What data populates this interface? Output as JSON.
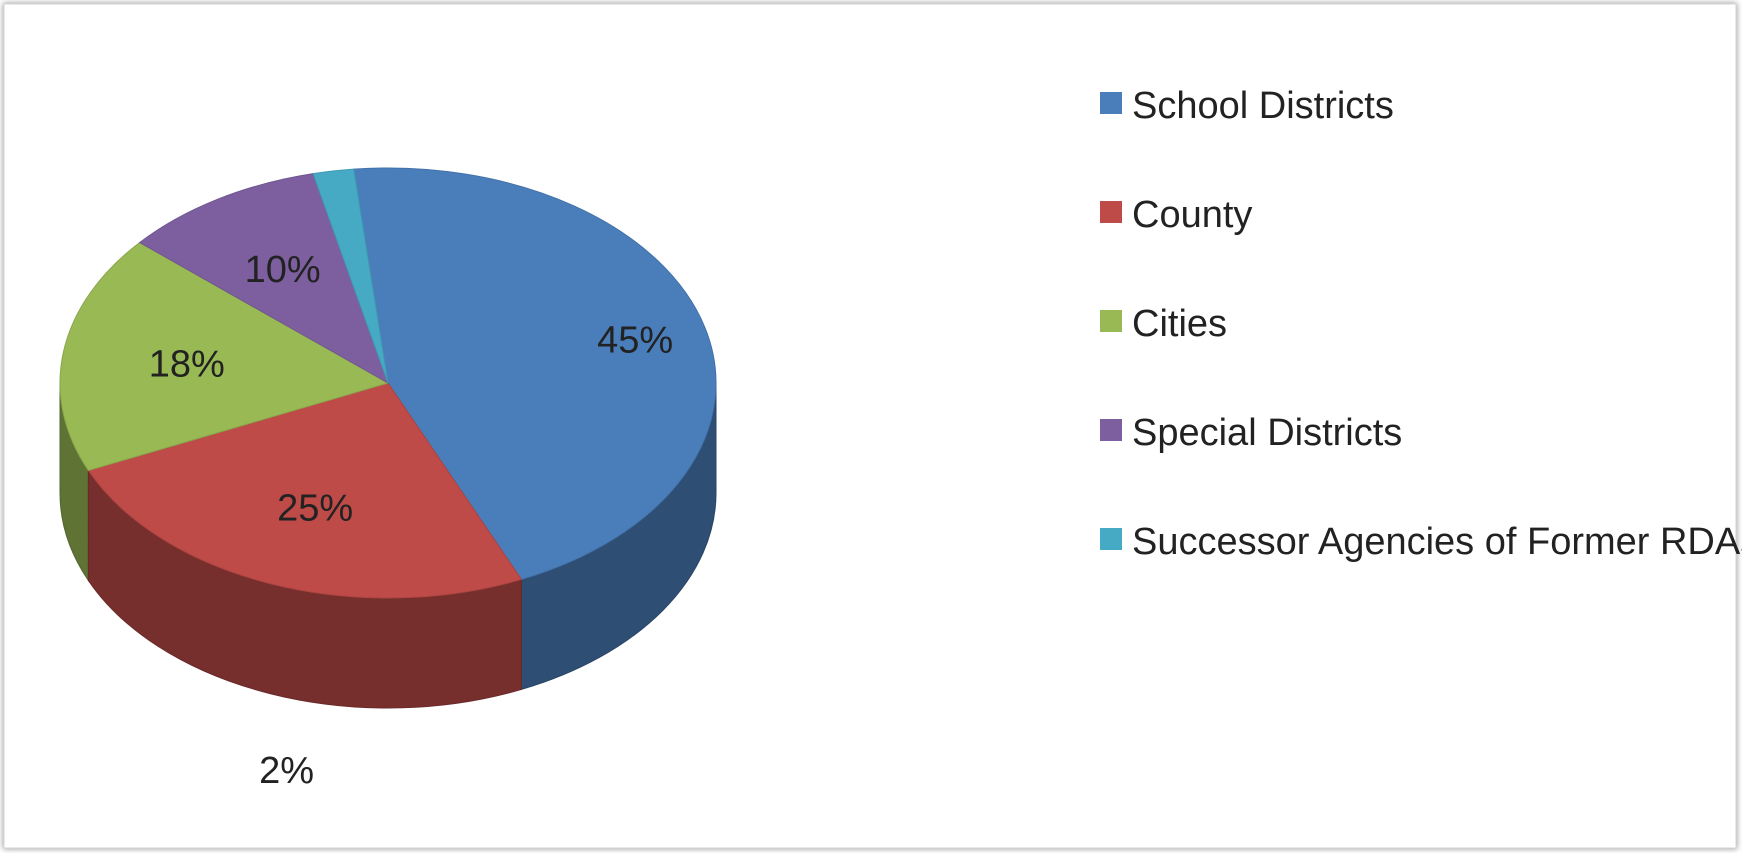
{
  "chart_data": {
    "type": "pie",
    "title": "",
    "style": "3d-exploded-none",
    "legend_position": "right",
    "slices": [
      {
        "label": "School Districts",
        "value": 45,
        "display": "45%",
        "color": "#4a7ebb"
      },
      {
        "label": "County",
        "value": 25,
        "display": "25%",
        "color": "#be4b48"
      },
      {
        "label": "Cities",
        "value": 18,
        "display": "18%",
        "color": "#98b954"
      },
      {
        "label": "Special Districts",
        "value": 10,
        "display": "10%",
        "color": "#7d5fa0"
      },
      {
        "label": "Successor Agencies of Former RDAs",
        "value": 2,
        "display": "2%",
        "color": "#46aac5"
      }
    ]
  }
}
